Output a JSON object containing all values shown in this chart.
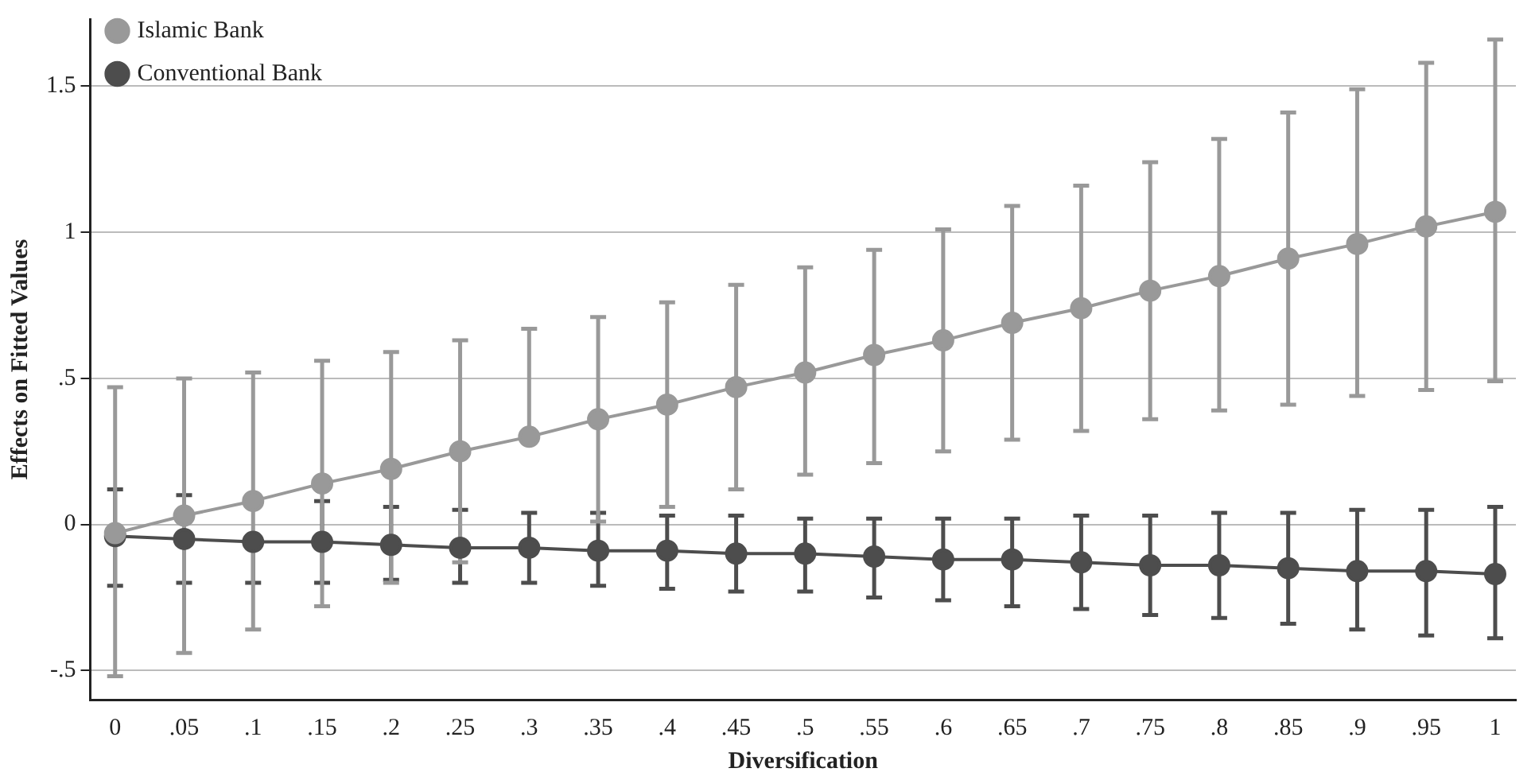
{
  "chart_data": {
    "type": "line",
    "xlabel": "Diversification",
    "ylabel": "Effects on Fitted Values",
    "x": [
      0,
      0.05,
      0.1,
      0.15,
      0.2,
      0.25,
      0.3,
      0.35,
      0.4,
      0.45,
      0.5,
      0.55,
      0.6,
      0.65,
      0.7,
      0.75,
      0.8,
      0.85,
      0.9,
      0.95,
      1
    ],
    "series": [
      {
        "name": "Conventional Bank",
        "color": "#4d4d4d",
        "values": [
          -0.04,
          -0.05,
          -0.06,
          -0.06,
          -0.07,
          -0.08,
          -0.08,
          -0.09,
          -0.09,
          -0.1,
          -0.1,
          -0.11,
          -0.12,
          -0.12,
          -0.13,
          -0.14,
          -0.14,
          -0.15,
          -0.16,
          -0.16,
          -0.17
        ],
        "errors": [
          [
            -0.21,
            0.12
          ],
          [
            -0.2,
            0.1
          ],
          [
            -0.2,
            -0.06
          ],
          [
            -0.2,
            0.08
          ],
          [
            -0.19,
            0.06
          ],
          [
            -0.2,
            0.05
          ],
          [
            -0.2,
            0.04
          ],
          [
            -0.21,
            0.04
          ],
          [
            -0.22,
            0.03
          ],
          [
            -0.23,
            0.03
          ],
          [
            -0.23,
            0.02
          ],
          [
            -0.25,
            0.02
          ],
          [
            -0.26,
            0.02
          ],
          [
            -0.28,
            0.02
          ],
          [
            -0.29,
            0.03
          ],
          [
            -0.31,
            0.03
          ],
          [
            -0.32,
            0.04
          ],
          [
            -0.34,
            0.04
          ],
          [
            -0.36,
            0.05
          ],
          [
            -0.38,
            0.05
          ],
          [
            -0.39,
            0.06
          ]
        ]
      },
      {
        "name": "Islamic Bank",
        "color": "#999999",
        "values": [
          -0.03,
          0.03,
          0.08,
          0.14,
          0.19,
          0.25,
          0.3,
          0.36,
          0.41,
          0.47,
          0.52,
          0.58,
          0.63,
          0.69,
          0.74,
          0.8,
          0.85,
          0.91,
          0.96,
          1.02,
          1.07
        ],
        "errors": [
          [
            -0.52,
            0.47
          ],
          [
            -0.44,
            0.5
          ],
          [
            -0.36,
            0.52
          ],
          [
            -0.28,
            0.56
          ],
          [
            -0.2,
            0.59
          ],
          [
            -0.13,
            0.63
          ],
          [
            0.3,
            0.67
          ],
          [
            0.01,
            0.71
          ],
          [
            0.06,
            0.76
          ],
          [
            0.12,
            0.82
          ],
          [
            0.17,
            0.88
          ],
          [
            0.21,
            0.94
          ],
          [
            0.25,
            1.01
          ],
          [
            0.29,
            1.09
          ],
          [
            0.32,
            1.16
          ],
          [
            0.36,
            1.24
          ],
          [
            0.39,
            1.32
          ],
          [
            0.41,
            1.41
          ],
          [
            0.44,
            1.49
          ],
          [
            0.46,
            1.58
          ],
          [
            0.49,
            1.66
          ]
        ]
      }
    ],
    "xlim": [
      -0.018,
      1.015
    ],
    "xticks": [
      0,
      {
        "value": 0.05,
        "label": ".05"
      },
      {
        "value": 0.1,
        "label": ".1"
      },
      {
        "value": 0.15,
        "label": ".15"
      },
      {
        "value": 0.2,
        "label": ".2"
      },
      {
        "value": 0.25,
        "label": ".25"
      },
      {
        "value": 0.3,
        "label": ".3"
      },
      {
        "value": 0.35,
        "label": ".35"
      },
      {
        "value": 0.4,
        "label": ".4"
      },
      {
        "value": 0.45,
        "label": ".45"
      },
      {
        "value": 0.5,
        "label": ".5"
      },
      {
        "value": 0.55,
        "label": ".55"
      },
      {
        "value": 0.6,
        "label": ".6"
      },
      {
        "value": 0.65,
        "label": ".65"
      },
      {
        "value": 0.7,
        "label": ".7"
      },
      {
        "value": 0.75,
        "label": ".75"
      },
      {
        "value": 0.8,
        "label": ".8"
      },
      {
        "value": 0.85,
        "label": ".85"
      },
      {
        "value": 0.9,
        "label": ".9"
      },
      {
        "value": 0.95,
        "label": ".95"
      },
      1
    ],
    "ylim": [
      -0.6,
      1.73
    ],
    "yticks": [
      {
        "value": -0.5,
        "label": "-.5"
      },
      0,
      {
        "value": 0.5,
        "label": ".5"
      },
      1,
      1.5
    ],
    "grid": "y",
    "legend": "top left",
    "marker": "circle",
    "line_style": "solid"
  }
}
